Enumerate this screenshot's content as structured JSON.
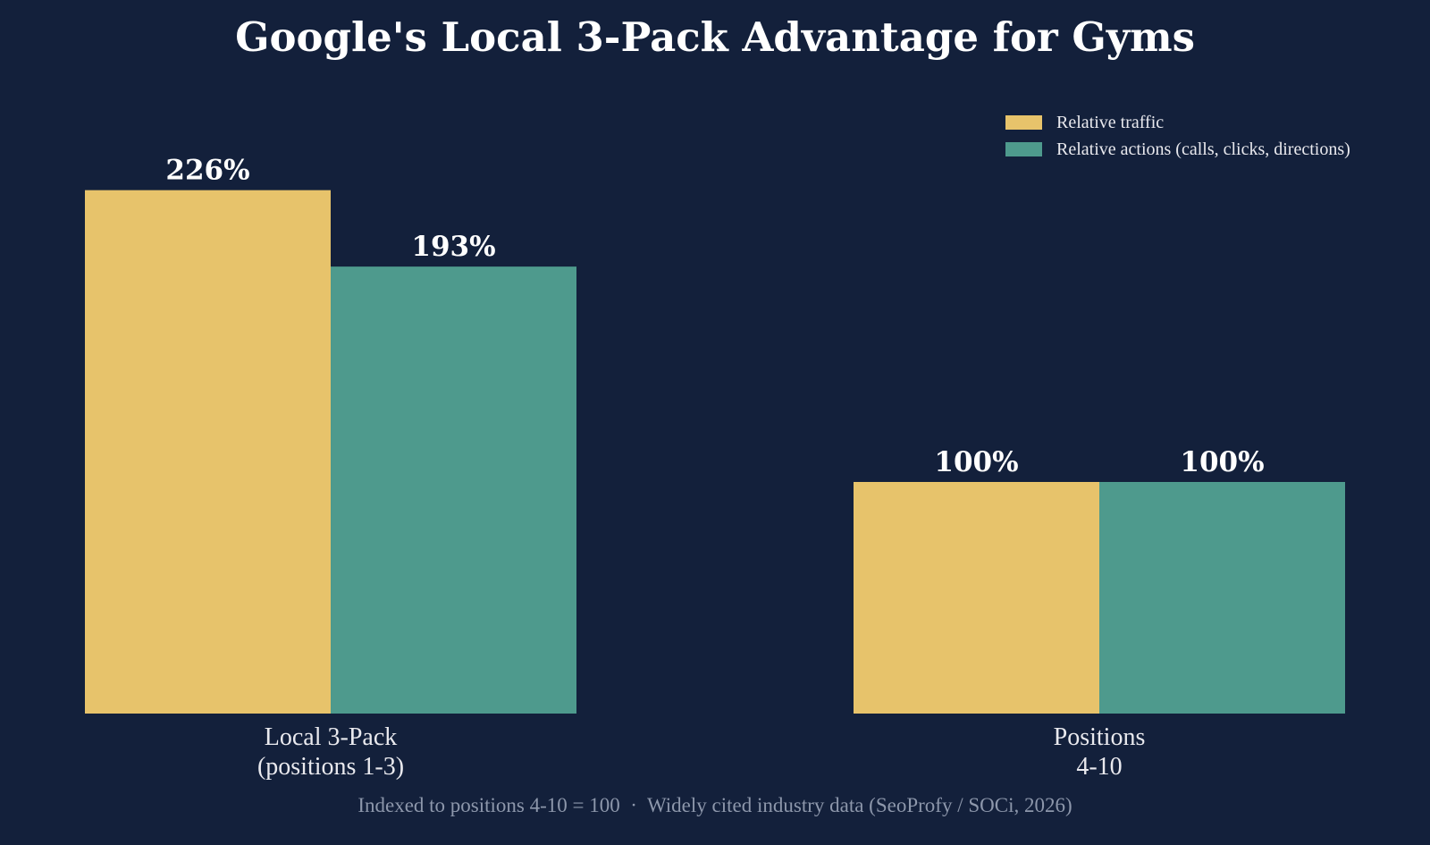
{
  "colors": {
    "background": "#13203b",
    "traffic": "#e7c36b",
    "actions": "#4e9a8d",
    "text": "#ffffff",
    "caption": "#8d97ab"
  },
  "chart_data": {
    "type": "bar",
    "title": "Google's Local 3-Pack Advantage for Gyms",
    "categories": [
      [
        "Local 3-Pack",
        "(positions 1-3)"
      ],
      [
        "Positions",
        "4-10"
      ]
    ],
    "series": [
      {
        "name": "Relative traffic",
        "values": [
          226,
          100
        ],
        "labels": [
          "226%",
          "100%"
        ],
        "color": "#e7c36b"
      },
      {
        "name": "Relative actions (calls, clicks, directions)",
        "values": [
          193,
          100
        ],
        "labels": [
          "193%",
          "100%"
        ],
        "color": "#4e9a8d"
      }
    ],
    "ylim": [
      0,
      240
    ],
    "grid": false,
    "legend_position": "top-right",
    "caption": "Indexed to positions 4-10 = 100  ·  Widely cited industry data (SeoProfy / SOCi, 2026)"
  }
}
